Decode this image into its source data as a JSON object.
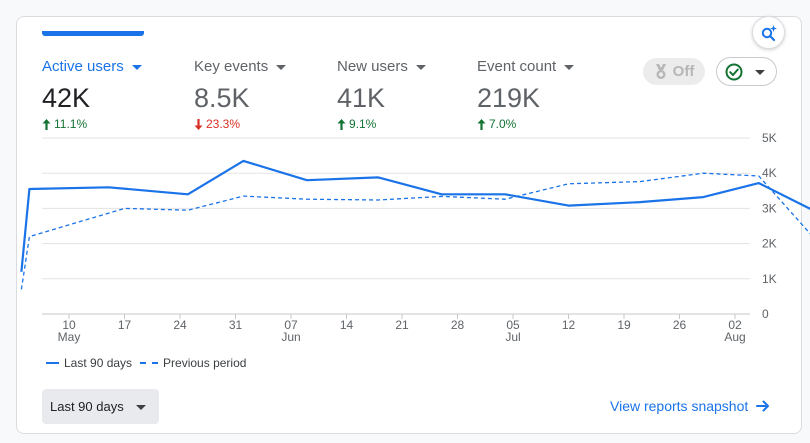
{
  "metrics": [
    {
      "label": "Active users",
      "value": "42K",
      "change": "11.1%",
      "direction": "up",
      "active": true
    },
    {
      "label": "Key events",
      "value": "8.5K",
      "change": "23.3%",
      "direction": "down",
      "active": false
    },
    {
      "label": "New users",
      "value": "41K",
      "change": "9.1%",
      "direction": "up",
      "active": false
    },
    {
      "label": "Event count",
      "value": "219K",
      "change": "7.0%",
      "direction": "up",
      "active": false
    }
  ],
  "controls": {
    "benchmark_toggle_label": "Off",
    "insights_icon": "insights-sparkle-icon",
    "status_icon": "check-circle-icon"
  },
  "colors": {
    "accent": "#1a73e8",
    "positive": "#137333",
    "negative": "#d93025"
  },
  "chart_data": {
    "type": "line",
    "x_ticks": [
      {
        "day": "10",
        "month": "May"
      },
      {
        "day": "17",
        "month": ""
      },
      {
        "day": "24",
        "month": ""
      },
      {
        "day": "31",
        "month": ""
      },
      {
        "day": "07",
        "month": "Jun"
      },
      {
        "day": "14",
        "month": ""
      },
      {
        "day": "21",
        "month": ""
      },
      {
        "day": "28",
        "month": ""
      },
      {
        "day": "05",
        "month": "Jul"
      },
      {
        "day": "12",
        "month": ""
      },
      {
        "day": "19",
        "month": ""
      },
      {
        "day": "26",
        "month": ""
      },
      {
        "day": "02",
        "month": "Aug"
      }
    ],
    "y_ticks": [
      "0",
      "1K",
      "2K",
      "3K",
      "4K",
      "5K"
    ],
    "ylim": [
      0,
      5000
    ],
    "grid": true,
    "legend_position": "bottom-left",
    "series": [
      {
        "name": "Last 90 days",
        "style": "solid",
        "points": [
          {
            "x": "2024-05-04",
            "y": 1200
          },
          {
            "x": "2024-05-05",
            "y": 3550
          },
          {
            "x": "2024-05-15",
            "y": 3600
          },
          {
            "x": "2024-05-25",
            "y": 3400
          },
          {
            "x": "2024-06-01",
            "y": 4350
          },
          {
            "x": "2024-06-09",
            "y": 3800
          },
          {
            "x": "2024-06-18",
            "y": 3880
          },
          {
            "x": "2024-06-26",
            "y": 3400
          },
          {
            "x": "2024-07-04",
            "y": 3400
          },
          {
            "x": "2024-07-12",
            "y": 3080
          },
          {
            "x": "2024-07-21",
            "y": 3180
          },
          {
            "x": "2024-07-29",
            "y": 3320
          },
          {
            "x": "2024-08-05",
            "y": 3720
          },
          {
            "x": "2024-08-12",
            "y": 2930
          }
        ]
      },
      {
        "name": "Previous period",
        "style": "dashed",
        "points": [
          {
            "x": "2024-05-04",
            "y": 700
          },
          {
            "x": "2024-05-05",
            "y": 2200
          },
          {
            "x": "2024-05-17",
            "y": 3000
          },
          {
            "x": "2024-05-25",
            "y": 2950
          },
          {
            "x": "2024-06-01",
            "y": 3350
          },
          {
            "x": "2024-06-09",
            "y": 3260
          },
          {
            "x": "2024-06-18",
            "y": 3240
          },
          {
            "x": "2024-06-26",
            "y": 3340
          },
          {
            "x": "2024-07-04",
            "y": 3260
          },
          {
            "x": "2024-07-12",
            "y": 3700
          },
          {
            "x": "2024-07-21",
            "y": 3760
          },
          {
            "x": "2024-07-29",
            "y": 4000
          },
          {
            "x": "2024-08-05",
            "y": 3920
          },
          {
            "x": "2024-08-12",
            "y": 2150
          }
        ]
      }
    ]
  },
  "legend": {
    "series_1": "Last 90 days",
    "series_2": "Previous period"
  },
  "footer": {
    "range_label": "Last 90 days",
    "snapshot_label": "View reports snapshot"
  }
}
